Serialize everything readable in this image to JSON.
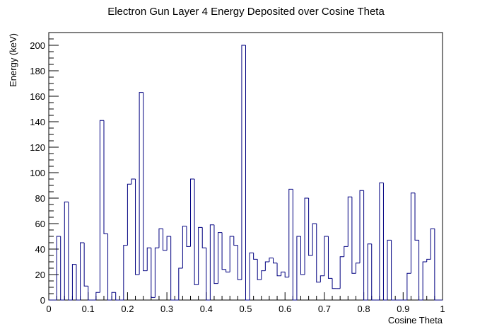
{
  "chart_data": {
    "type": "bar",
    "title": "Electron Gun Layer 4 Energy Deposited over Cosine Theta",
    "xlabel": "Cosine Theta",
    "ylabel": "Energy (keV)",
    "xlim": [
      0,
      1
    ],
    "ylim": [
      0,
      210
    ],
    "xticks": [
      "0",
      "0.1",
      "0.2",
      "0.3",
      "0.4",
      "0.5",
      "0.6",
      "0.7",
      "0.8",
      "0.9",
      "1"
    ],
    "yticks": [
      "0",
      "20",
      "40",
      "60",
      "80",
      "100",
      "120",
      "140",
      "160",
      "180",
      "200"
    ],
    "bin_width": 0.01,
    "series": [
      {
        "color": "#000080",
        "values": [
          0,
          0,
          50,
          0,
          77,
          0,
          28,
          0,
          45,
          11,
          0,
          0,
          6,
          141,
          52,
          0,
          6,
          0,
          0,
          43,
          91,
          95,
          20,
          163,
          23,
          41,
          2,
          41,
          56,
          39,
          50,
          0,
          0,
          25,
          58,
          42,
          95,
          12,
          57,
          41,
          0,
          59,
          13,
          53,
          24,
          22,
          50,
          43,
          16,
          200,
          0,
          37,
          32,
          16,
          23,
          30,
          33,
          29,
          19,
          22,
          18,
          87,
          0,
          50,
          20,
          80,
          35,
          60,
          14,
          19,
          50,
          17,
          9,
          9,
          34,
          42,
          81,
          21,
          29,
          86,
          0,
          44,
          0,
          0,
          92,
          0,
          47,
          0,
          0,
          0,
          0,
          21,
          84,
          47,
          0,
          30,
          32,
          56,
          0,
          0
        ]
      }
    ]
  }
}
